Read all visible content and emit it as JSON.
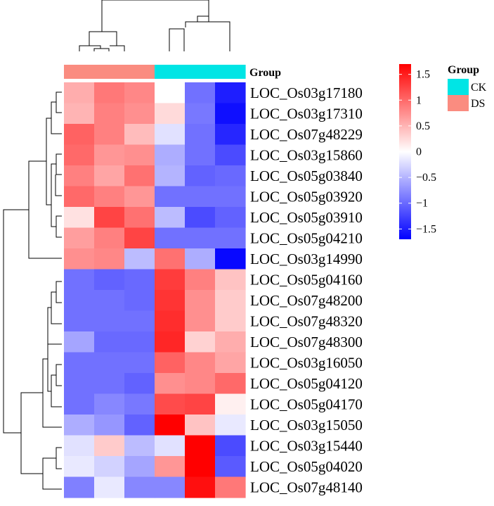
{
  "chart_data": {
    "type": "heatmap",
    "rows": [
      "LOC_Os03g17180",
      "LOC_Os03g17310",
      "LOC_Os07g48229",
      "LOC_Os03g15860",
      "LOC_Os05g03840",
      "LOC_Os05g03920",
      "LOC_Os05g03910",
      "LOC_Os05g04210",
      "LOC_Os03g14990",
      "LOC_Os05g04160",
      "LOC_Os07g48200",
      "LOC_Os07g48320",
      "LOC_Os07g48300",
      "LOC_Os03g16050",
      "LOC_Os05g04120",
      "LOC_Os05g04170",
      "LOC_Os03g15050",
      "LOC_Os03g15440",
      "LOC_Os05g04020",
      "LOC_Os07g48140"
    ],
    "columns": [
      "DS",
      "DS",
      "DS",
      "CK",
      "CK",
      "CK"
    ],
    "values": [
      [
        0.55,
        0.9,
        0.8,
        0.0,
        -0.95,
        -1.5
      ],
      [
        0.5,
        0.85,
        0.75,
        0.25,
        -0.9,
        -1.6
      ],
      [
        1.05,
        0.85,
        0.45,
        -0.2,
        -0.95,
        -1.45
      ],
      [
        1.0,
        0.7,
        0.75,
        -0.55,
        -0.95,
        -1.2
      ],
      [
        0.85,
        0.6,
        0.95,
        -0.5,
        -1.05,
        -1.0
      ],
      [
        1.0,
        0.85,
        0.7,
        -0.95,
        -0.95,
        -0.95
      ],
      [
        0.2,
        1.25,
        0.95,
        -0.45,
        -1.2,
        -1.05
      ],
      [
        0.65,
        0.85,
        1.25,
        -0.95,
        -0.95,
        -0.95
      ],
      [
        0.75,
        0.8,
        -0.45,
        0.95,
        -0.55,
        -1.65
      ],
      [
        -0.95,
        -1.05,
        -1.0,
        1.3,
        0.85,
        0.4
      ],
      [
        -0.95,
        -0.95,
        -1.0,
        1.35,
        0.75,
        0.35
      ],
      [
        -0.95,
        -0.95,
        -0.95,
        1.4,
        0.75,
        0.35
      ],
      [
        -0.6,
        -1.0,
        -1.0,
        1.45,
        0.3,
        0.55
      ],
      [
        -0.95,
        -0.95,
        -0.95,
        1.05,
        0.8,
        0.6
      ],
      [
        -0.95,
        -0.95,
        -1.05,
        0.75,
        0.8,
        1.0
      ],
      [
        -0.95,
        -0.8,
        -0.9,
        1.2,
        1.25,
        0.1
      ],
      [
        -0.55,
        -0.7,
        -1.05,
        1.75,
        0.4,
        -0.15
      ],
      [
        -0.2,
        0.35,
        -0.45,
        -0.2,
        1.8,
        -1.2
      ],
      [
        -0.15,
        -0.3,
        -0.6,
        0.7,
        1.7,
        -1.1
      ],
      [
        -0.85,
        -0.15,
        -0.8,
        -0.8,
        1.6,
        0.9
      ]
    ],
    "color_scale": {
      "min": -1.7,
      "max": 1.7,
      "low": "#0000ff",
      "mid": "#ffffff",
      "high": "#ff0000"
    },
    "colorbar_ticks": [
      {
        "value": 1.5,
        "label": "1.5"
      },
      {
        "value": 1,
        "label": "1"
      },
      {
        "value": 0.5,
        "label": "0.5"
      },
      {
        "value": 0,
        "label": "0"
      },
      {
        "value": -0.5,
        "label": "−0.5"
      },
      {
        "value": -1,
        "label": "−1"
      },
      {
        "value": -1.5,
        "label": "−1.5"
      }
    ],
    "annotation": {
      "label": "Group"
    },
    "legend": {
      "title": "Group",
      "placement": "top-right",
      "items": [
        {
          "label": "CK",
          "color": "#00e5e5"
        },
        {
          "label": "DS",
          "color": "#fa8c80"
        }
      ]
    },
    "column_dendrogram": true,
    "row_dendrogram": true
  },
  "colors": {
    "line": "#000000"
  }
}
